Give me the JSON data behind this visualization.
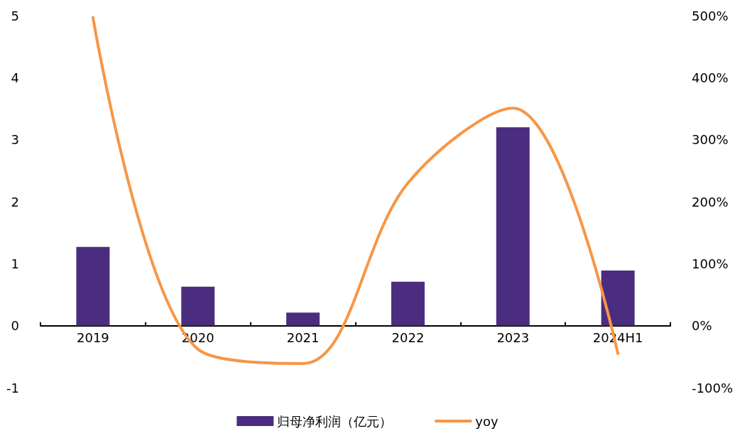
{
  "chart_data": {
    "type": "bar",
    "categories": [
      "2019",
      "2020",
      "2021",
      "2022",
      "2023",
      "2024H1"
    ],
    "series": [
      {
        "name": "归母净利润（亿元）",
        "color": "#4b2d7f",
        "values": [
          1.27,
          0.63,
          0.21,
          0.71,
          3.2,
          0.89
        ]
      },
      {
        "name": "yoy",
        "type": "line",
        "axis": "y2",
        "color": "#f79646",
        "values": [
          497,
          -38,
          -61,
          230,
          351,
          -45
        ]
      }
    ],
    "ylim": [
      -1,
      5
    ],
    "yticks": [
      -1,
      0,
      1,
      2,
      3,
      4,
      5
    ],
    "y2lim": [
      -100,
      500
    ],
    "y2ticks": [
      {
        "value": -100,
        "label": "-100%"
      },
      {
        "value": 0,
        "label": "0%"
      },
      {
        "value": 100,
        "label": "100%"
      },
      {
        "value": 200,
        "label": "200%"
      },
      {
        "value": 300,
        "label": "300%"
      },
      {
        "value": 400,
        "label": "400%"
      },
      {
        "value": 500,
        "label": "500%"
      }
    ],
    "grid": false,
    "legend": "bottom",
    "marker": "none",
    "line_style": "solid"
  }
}
